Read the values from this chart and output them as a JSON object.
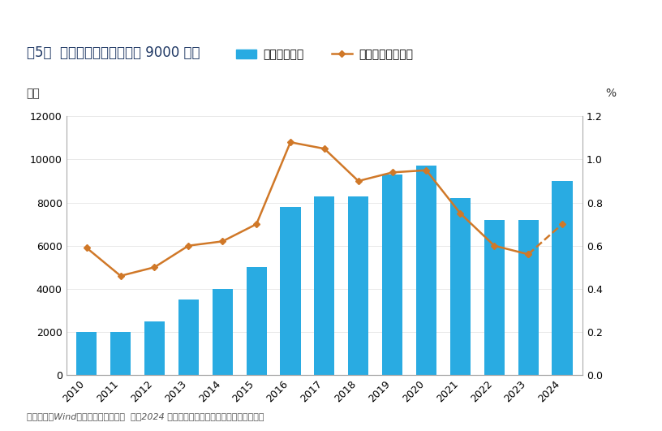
{
  "title_prefix": "图5：  明年地方赤字可能达到 ",
  "title_bold": "9000",
  "title_suffix": " 亿元",
  "ylabel_left": "亿元",
  "ylabel_right": "%",
  "footnote": "数据来源：Wind，信达证券研发中心  注：2024 年地方财政赤字和地方赤字率均为预测值",
  "years": [
    2010,
    2011,
    2012,
    2013,
    2014,
    2015,
    2016,
    2017,
    2018,
    2019,
    2020,
    2021,
    2022,
    2023,
    2024
  ],
  "bar_values": [
    2000,
    2000,
    2500,
    3500,
    4000,
    5000,
    7800,
    8300,
    8300,
    9300,
    9700,
    8200,
    7200,
    7200,
    9000
  ],
  "line_values": [
    0.59,
    0.46,
    0.5,
    0.6,
    0.62,
    0.7,
    1.08,
    1.05,
    0.9,
    0.94,
    0.95,
    0.75,
    0.6,
    0.56,
    0.7
  ],
  "line_dashed_from_idx": 13,
  "bar_color": "#29ABE2",
  "line_color": "#D07828",
  "ylim_left": [
    0,
    12000
  ],
  "ylim_right": [
    0,
    1.2
  ],
  "yticks_left": [
    0,
    2000,
    4000,
    6000,
    8000,
    10000,
    12000
  ],
  "yticks_right": [
    0.0,
    0.2,
    0.4,
    0.6,
    0.8,
    1.0,
    1.2
  ],
  "legend_bar_label": "地方财政赤字",
  "legend_line_label": "地方赤字率（右）",
  "background_color": "#FFFFFF",
  "title_color": "#1F3864",
  "footnote_color": "#555555",
  "font_size_title": 12,
  "font_size_tick": 9,
  "font_size_legend": 10,
  "font_size_ylabel": 10,
  "font_size_footnote": 8
}
